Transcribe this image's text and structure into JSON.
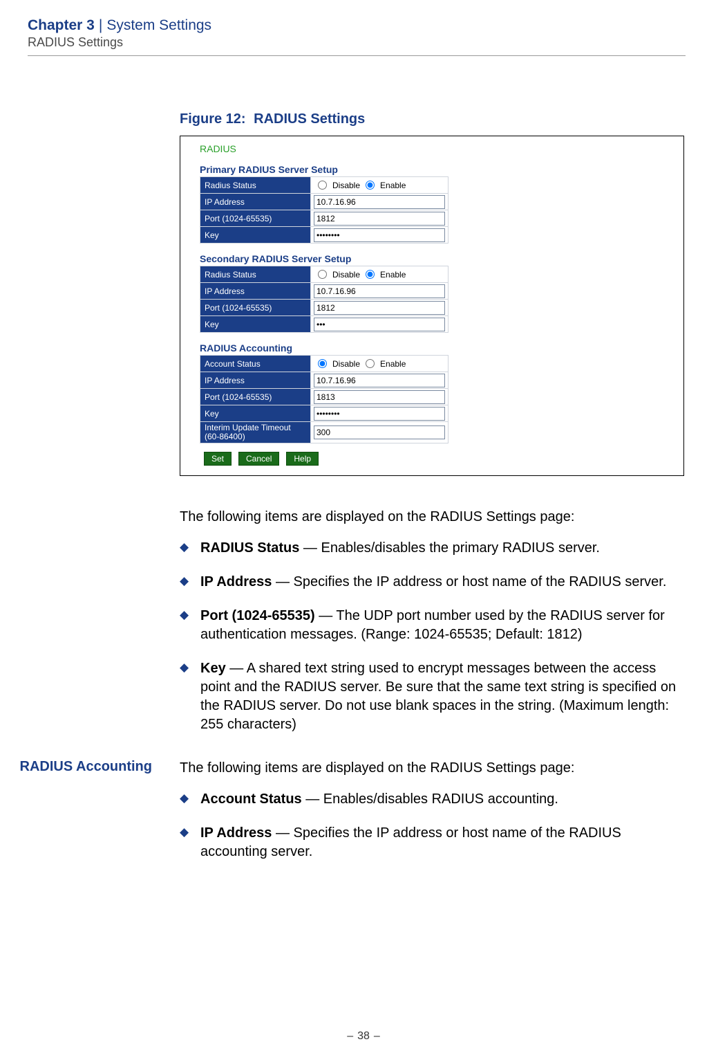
{
  "header": {
    "chapter": "Chapter 3",
    "separator": "|",
    "title": "System Settings",
    "subtitle": "RADIUS Settings"
  },
  "figure": {
    "caption_prefix": "Figure 12:",
    "caption_title": "RADIUS Settings",
    "panel_title": "RADIUS",
    "primary": {
      "heading": "Primary RADIUS Server Setup",
      "rows": {
        "status_label": "Radius Status",
        "disable_label": "Disable",
        "enable_label": "Enable",
        "ip_label": "IP Address",
        "ip_value": "10.7.16.96",
        "port_label": "Port (1024-65535)",
        "port_value": "1812",
        "key_label": "Key",
        "key_value": "••••••••"
      }
    },
    "secondary": {
      "heading": "Secondary RADIUS Server Setup",
      "rows": {
        "status_label": "Radius Status",
        "disable_label": "Disable",
        "enable_label": "Enable",
        "ip_label": "IP Address",
        "ip_value": "10.7.16.96",
        "port_label": "Port (1024-65535)",
        "port_value": "1812",
        "key_label": "Key",
        "key_value": "•••"
      }
    },
    "accounting": {
      "heading": "RADIUS Accounting",
      "rows": {
        "status_label": "Account Status",
        "disable_label": "Disable",
        "enable_label": "Enable",
        "ip_label": "IP Address",
        "ip_value": "10.7.16.96",
        "port_label": "Port (1024-65535)",
        "port_value": "1813",
        "key_label": "Key",
        "key_value": "••••••••",
        "interim_label": "Interim Update Timeout (60-86400)",
        "interim_value": "300"
      }
    },
    "buttons": {
      "set": "Set",
      "cancel": "Cancel",
      "help": "Help"
    }
  },
  "body": {
    "intro1": "The following items are displayed on the RADIUS Settings page:",
    "items1": [
      {
        "term": "RADIUS Status",
        "desc": " — Enables/disables the primary RADIUS server."
      },
      {
        "term": "IP Address",
        "desc": " — Specifies the IP address or host name of the RADIUS server."
      },
      {
        "term": "Port (1024-65535)",
        "desc": " — The UDP port number used by the RADIUS server for authentication messages. (Range: 1024-65535; Default: 1812)"
      },
      {
        "term": "Key",
        "desc": " — A shared text string used to encrypt messages between the access point and the RADIUS server. Be sure that the same text string is specified on the RADIUS server. Do not use blank spaces in the string. (Maximum length: 255 characters)"
      }
    ],
    "side_heading": "RADIUS Accounting",
    "intro2": "The following items are displayed on the RADIUS Settings page:",
    "items2": [
      {
        "term": "Account Status",
        "desc": " — Enables/disables RADIUS accounting."
      },
      {
        "term": "IP Address",
        "desc": " — Specifies the IP address or host name of the RADIUS accounting server."
      }
    ]
  },
  "footer": {
    "page": "38"
  }
}
